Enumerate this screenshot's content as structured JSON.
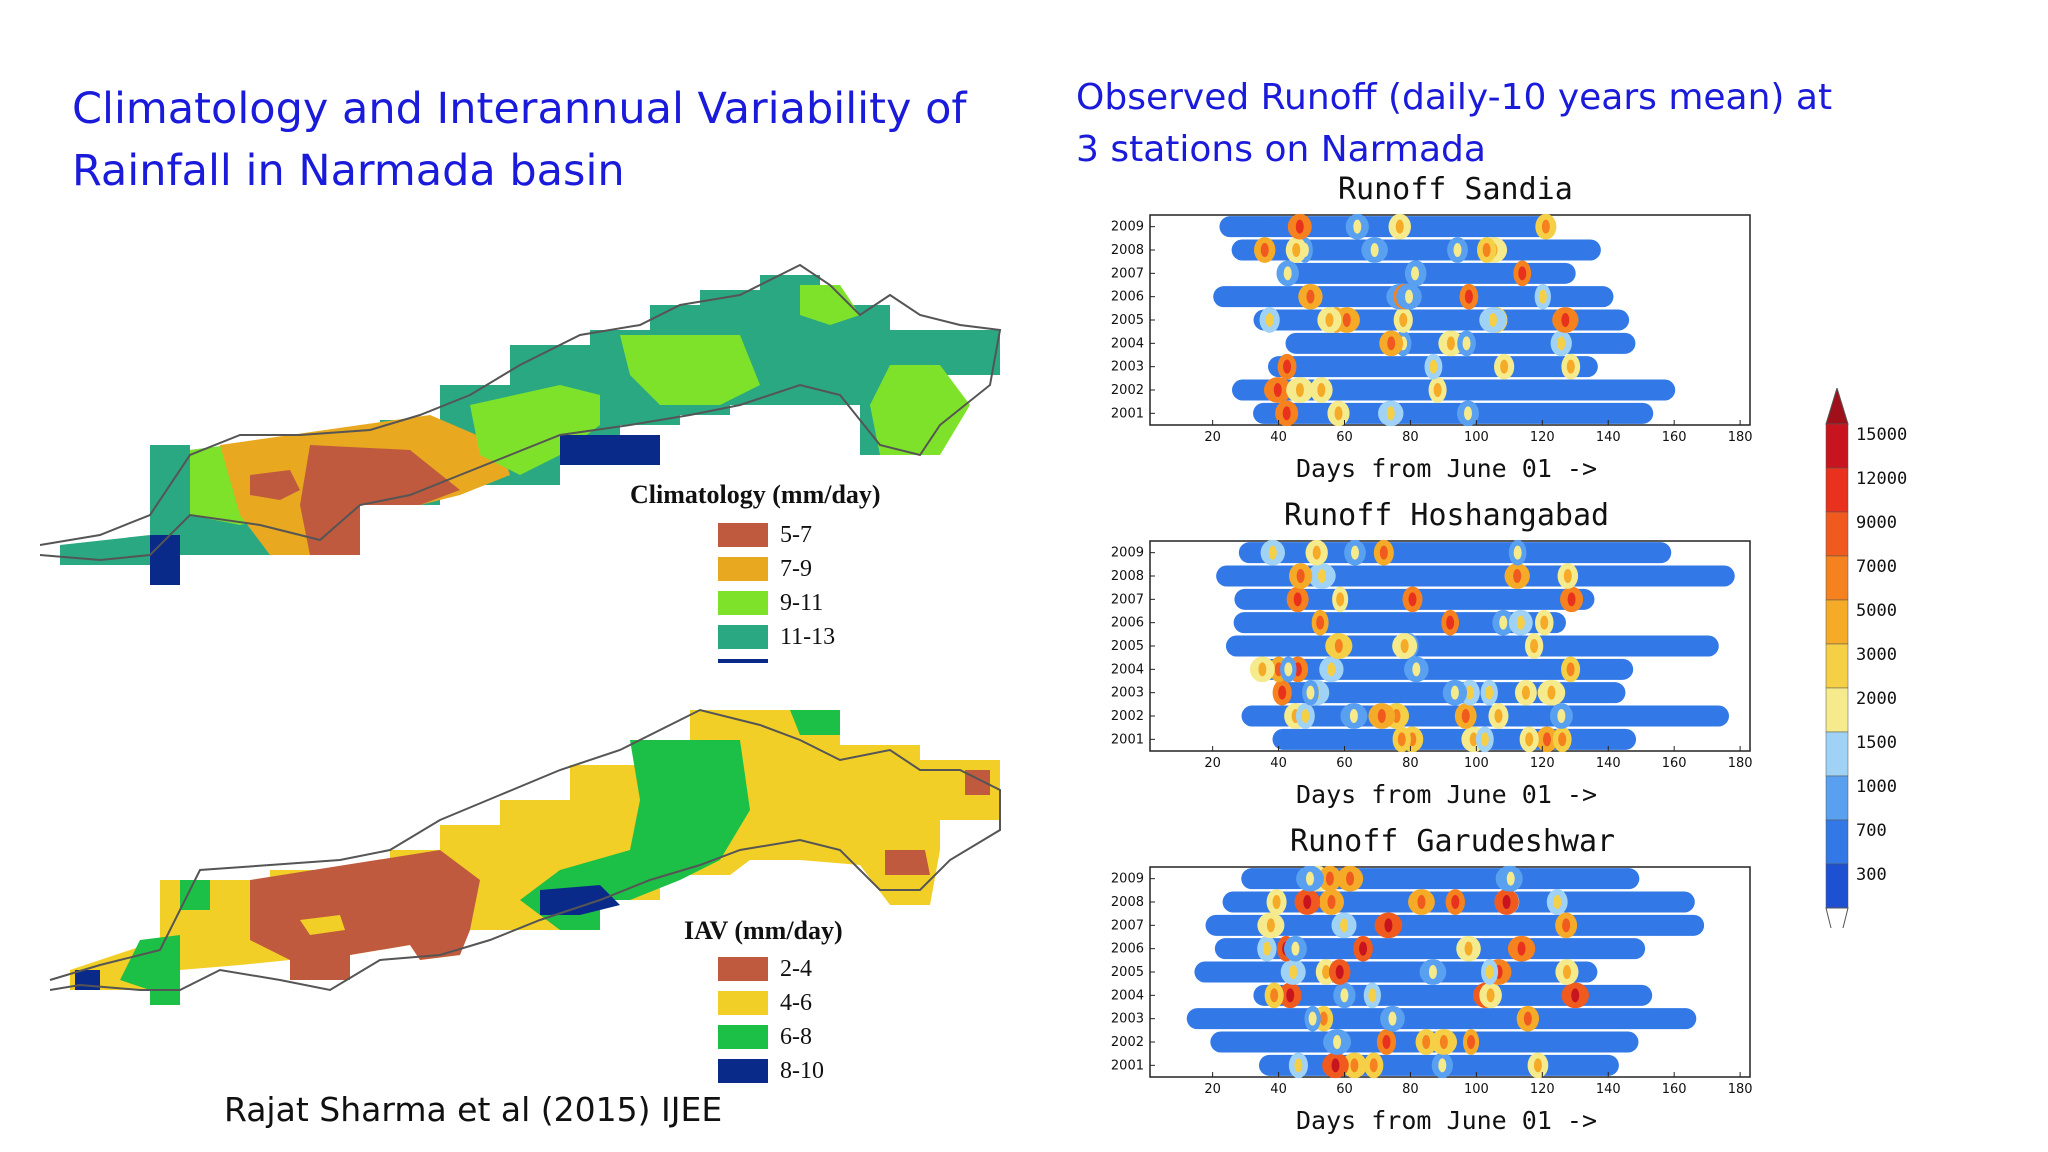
{
  "slide": {
    "left_title": [
      "Climatology and Interannual Variability of",
      "Rainfall in Narmada basin"
    ],
    "right_title": [
      "Observed Runoff (daily-10 years mean) at",
      "3 stations on Narmada"
    ],
    "citation": "Rajat Sharma et al (2015) IJEE"
  },
  "maps": [
    {
      "legend_title": "Climatology (mm/day)",
      "legend": [
        {
          "label": "5-7",
          "color": "#c05a3e"
        },
        {
          "label": "7-9",
          "color": "#e8a820"
        },
        {
          "label": "9-11",
          "color": "#7ee22a"
        },
        {
          "label": "11-13",
          "color": "#2aa882"
        },
        {
          "label": "",
          "color": "#0a2a8a"
        }
      ]
    },
    {
      "legend_title": "IAV (mm/day)",
      "legend": [
        {
          "label": "2-4",
          "color": "#c05a3e"
        },
        {
          "label": "4-6",
          "color": "#f2cf26"
        },
        {
          "label": "6-8",
          "color": "#1dc046"
        },
        {
          "label": "8-10",
          "color": "#0a2a8a"
        }
      ]
    }
  ],
  "chart_data": [
    {
      "type": "heatmap",
      "title": "Runoff Sandia",
      "xlabel": "Days from June 01 ->",
      "x_ticks": [
        20,
        40,
        60,
        80,
        100,
        120,
        140,
        160,
        180
      ],
      "y_ticks": [
        "2001",
        "2002",
        "2003",
        "2004",
        "2005",
        "2006",
        "2007",
        "2008",
        "2009"
      ],
      "xlim": [
        1,
        183
      ]
    },
    {
      "type": "heatmap",
      "title": "Runoff Hoshangabad",
      "xlabel": "Days from June 01 ->",
      "x_ticks": [
        20,
        40,
        60,
        80,
        100,
        120,
        140,
        160,
        180
      ],
      "y_ticks": [
        "2001",
        "2002",
        "2003",
        "2004",
        "2005",
        "2006",
        "2007",
        "2008",
        "2009"
      ],
      "xlim": [
        1,
        183
      ]
    },
    {
      "type": "heatmap",
      "title": "Runoff Garudeshwar",
      "xlabel": "Days from June 01 ->",
      "x_ticks": [
        20,
        40,
        60,
        80,
        100,
        120,
        140,
        160,
        180
      ],
      "y_ticks": [
        "2001",
        "2002",
        "2003",
        "2004",
        "2005",
        "2006",
        "2007",
        "2008",
        "2009"
      ],
      "xlim": [
        1,
        183
      ]
    }
  ],
  "colorbar": {
    "labels": [
      "15000",
      "12000",
      "9000",
      "7000",
      "5000",
      "3000",
      "2000",
      "1500",
      "1000",
      "700",
      "300"
    ],
    "colors": [
      "#c8141e",
      "#e8321e",
      "#f05a1e",
      "#f5821e",
      "#f5aa28",
      "#f5d046",
      "#f5eb8c",
      "#a0d2f5",
      "#5aa0f0",
      "#3278e6",
      "#1e50d2"
    ]
  }
}
